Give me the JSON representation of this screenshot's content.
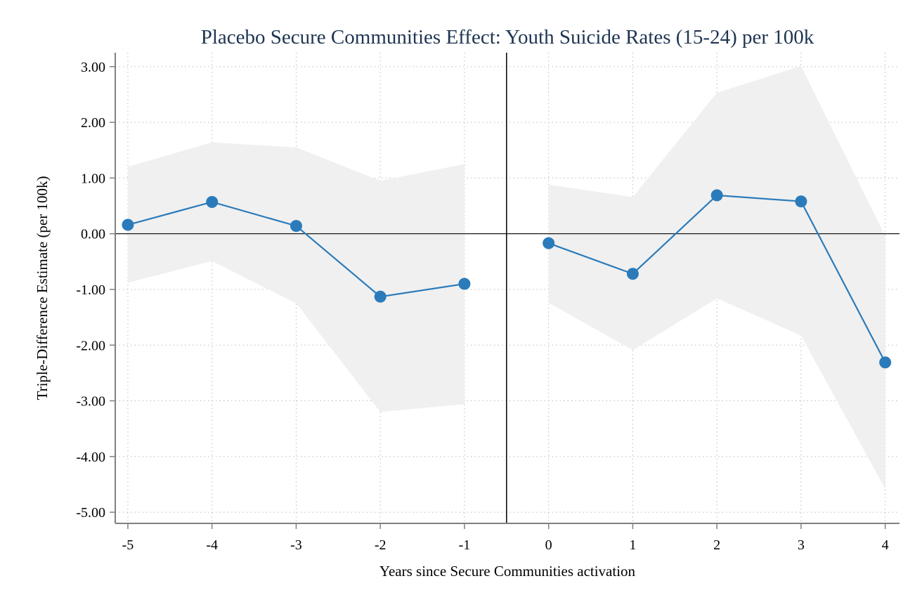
{
  "chart_data": {
    "type": "line",
    "title": "Placebo Secure Communities Effect: Youth Suicide Rates (15-24) per 100k",
    "xlabel": "Years since Secure Communities activation",
    "ylabel": "Triple-Difference Estimate (per 100k)",
    "xlim": [
      -5.15,
      4.17
    ],
    "ylim": [
      -5.2,
      3.25
    ],
    "x_ticks": [
      -5,
      -4,
      -3,
      -2,
      -1,
      0,
      1,
      2,
      3,
      4
    ],
    "x_tick_labels": [
      "-5",
      "-4",
      "-3",
      "-2",
      "-1",
      "0",
      "1",
      "2",
      "3",
      "4"
    ],
    "y_ticks": [
      3,
      2,
      1,
      0,
      -1,
      -2,
      -3,
      -4,
      -5
    ],
    "y_tick_labels": [
      "3.00",
      "2.00",
      "1.00",
      "0.00",
      "-1.00",
      "-2.00",
      "-3.00",
      "-4.00",
      "-5.00"
    ],
    "grid": true,
    "reference_lines": {
      "y_zero": 0,
      "x_break": -0.5
    },
    "colors": {
      "line": "#2b7bba",
      "ci_band": "#f0f0f0",
      "grid": "#bbbbbb",
      "axis": "#808080",
      "title": "#1f3552"
    },
    "series": [
      {
        "segment": "pre",
        "x": [
          -5,
          -4,
          -3,
          -2,
          -1
        ],
        "y": [
          0.16,
          0.57,
          0.14,
          -1.13,
          -0.9
        ],
        "ci_lower": [
          -0.88,
          -0.49,
          -1.25,
          -3.2,
          -3.06
        ],
        "ci_upper": [
          1.2,
          1.64,
          1.55,
          0.95,
          1.25
        ]
      },
      {
        "segment": "post",
        "x": [
          0,
          1,
          2,
          3,
          4
        ],
        "y": [
          -0.17,
          -0.72,
          0.69,
          0.58,
          -2.31
        ],
        "ci_lower": [
          -1.24,
          -2.09,
          -1.16,
          -1.83,
          -4.58
        ],
        "ci_upper": [
          0.88,
          0.66,
          2.53,
          3.01,
          -0.04
        ]
      }
    ]
  }
}
